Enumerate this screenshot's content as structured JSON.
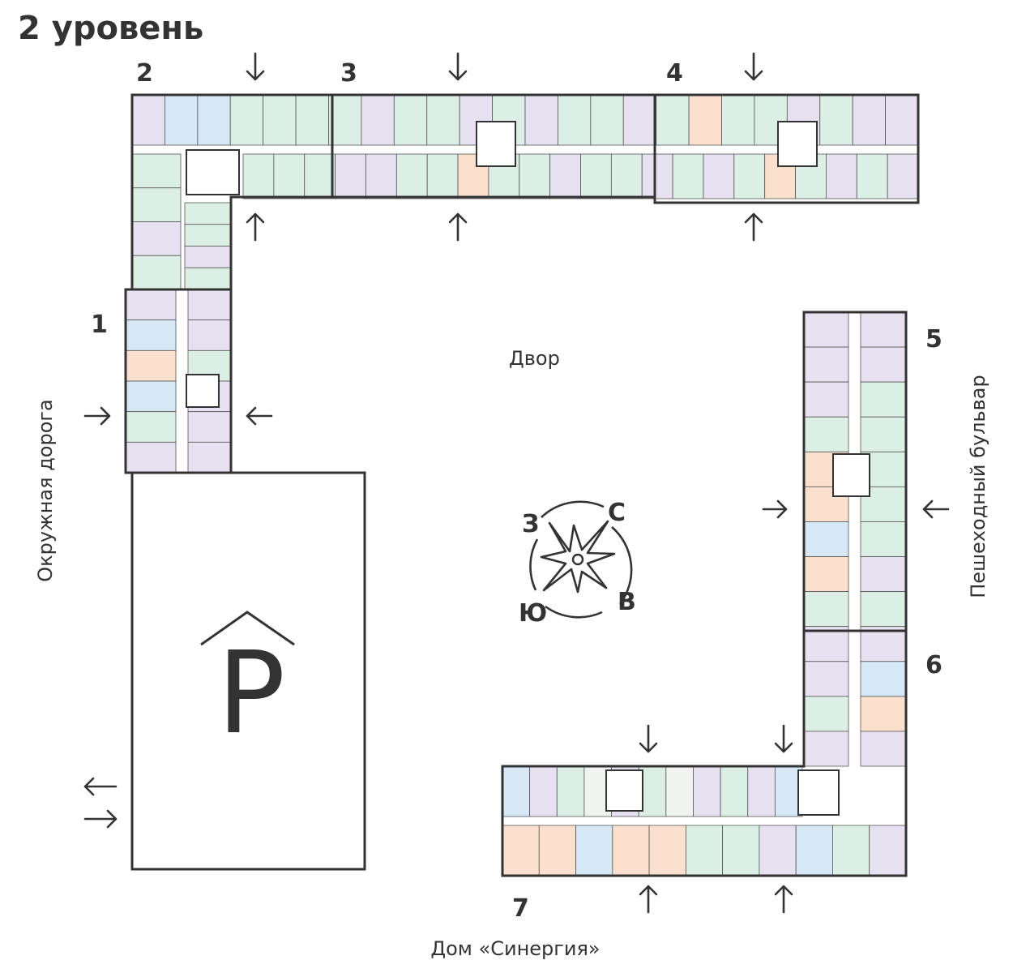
{
  "title": "2 уровень",
  "sections": [
    "1",
    "2",
    "3",
    "4",
    "5",
    "6",
    "7"
  ],
  "labels": {
    "yard": "Двор",
    "west_road": "Окружная дорога",
    "east_street": "Пешеходный бульвар",
    "south_building": "Дом «Синергия»"
  },
  "compass": {
    "west": "З",
    "north": "С",
    "east": "В",
    "south": "Ю"
  },
  "parking": {
    "letter": "P"
  },
  "palette": {
    "p": "#e7e0f1",
    "g": "#dcefe5",
    "b": "#d6e7f6",
    "o": "#fbe1cd",
    "w": "#f1f3f1"
  },
  "wings": {
    "top_outer": [
      "p",
      "b",
      "b",
      "g",
      "g",
      "g",
      "g",
      "p",
      "g",
      "g",
      "p",
      "g",
      "p",
      "g",
      "g",
      "p",
      "g",
      "o",
      "g",
      "g",
      "p",
      "g",
      "p",
      "p"
    ],
    "top_inner": [
      "g",
      "g",
      "g",
      "p",
      "p",
      "g",
      "g",
      "o",
      "g",
      "g",
      "p",
      "g",
      "g",
      "p",
      "g",
      "p",
      "g",
      "o",
      "g",
      "p",
      "g",
      "p"
    ],
    "left_upper": [
      "g",
      "g",
      "p",
      "g"
    ],
    "sec1_left": [
      "p",
      "b",
      "o",
      "b",
      "g",
      "p"
    ],
    "sec1_right": [
      "p",
      "p",
      "g",
      "p",
      "p",
      "p"
    ],
    "east_left": [
      "p",
      "p",
      "p",
      "g",
      "o",
      "o",
      "b",
      "o",
      "g",
      "p",
      "p",
      "g",
      "p"
    ],
    "east_right": [
      "p",
      "p",
      "g",
      "g",
      "g",
      "g",
      "g",
      "p",
      "g",
      "p",
      "b",
      "o",
      "p"
    ],
    "bottom_top": [
      "b",
      "p",
      "g",
      "w",
      "p",
      "g",
      "w",
      "p",
      "g",
      "p",
      "b"
    ],
    "bottom_bottom": [
      "o",
      "o",
      "b",
      "o",
      "o",
      "g",
      "g",
      "p",
      "b",
      "g",
      "p"
    ]
  }
}
